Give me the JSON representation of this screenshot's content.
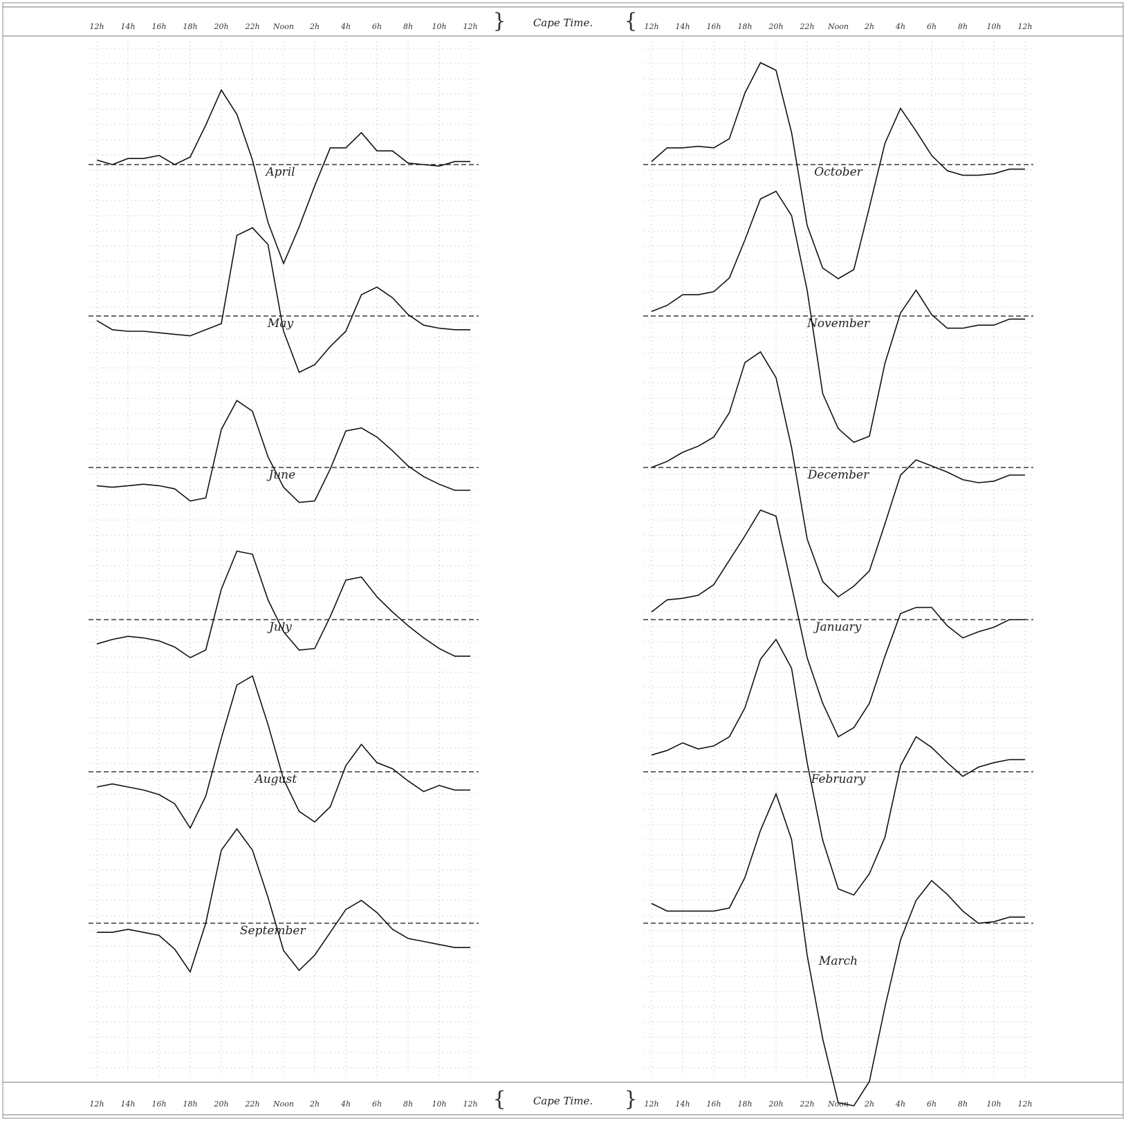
{
  "header_label": "Cape Time.",
  "footer_label": "Cape Time.",
  "chart_data": {
    "type": "line",
    "x_tick_labels": [
      "12h",
      "14h",
      "16h",
      "18h",
      "20h",
      "22h",
      "Noon",
      "2h",
      "4h",
      "6h",
      "8h",
      "10h",
      "12h"
    ],
    "x": [
      "12h",
      "13h",
      "14h",
      "15h",
      "16h",
      "17h",
      "18h",
      "19h",
      "20h",
      "21h",
      "22h",
      "23h",
      "Noon",
      "1h",
      "2h",
      "3h",
      "4h",
      "5h",
      "6h",
      "7h",
      "8h",
      "9h",
      "10h",
      "11h",
      "12h"
    ],
    "grid": true,
    "panels": [
      {
        "month": "April",
        "column": "left",
        "values": [
          0.3,
          0.0,
          0.4,
          0.4,
          0.6,
          0.0,
          0.5,
          2.6,
          4.9,
          3.3,
          0.3,
          -3.8,
          -6.5,
          -4.1,
          -1.4,
          1.1,
          1.1,
          2.1,
          0.9,
          0.9,
          0.1,
          0.0,
          -0.1,
          0.2,
          0.2
        ]
      },
      {
        "month": "May",
        "column": "left",
        "values": [
          -0.3,
          -0.9,
          -1.0,
          -1.0,
          -1.1,
          -1.2,
          -1.3,
          -0.9,
          -0.5,
          5.3,
          5.8,
          4.7,
          -1.0,
          -3.7,
          -3.2,
          -2.0,
          -1.0,
          1.4,
          1.9,
          1.2,
          0.1,
          -0.6,
          -0.8,
          -0.9,
          -0.9
        ]
      },
      {
        "month": "June",
        "column": "left",
        "values": [
          -1.2,
          -1.3,
          -1.2,
          -1.1,
          -1.2,
          -1.4,
          -2.2,
          -2.0,
          2.5,
          4.4,
          3.7,
          0.7,
          -1.3,
          -2.3,
          -2.2,
          -0.1,
          2.4,
          2.6,
          2.0,
          1.1,
          0.1,
          -0.6,
          -1.1,
          -1.5,
          -1.5
        ]
      },
      {
        "month": "July",
        "column": "left",
        "values": [
          -1.6,
          -1.3,
          -1.1,
          -1.2,
          -1.4,
          -1.8,
          -2.5,
          -2.0,
          2.0,
          4.5,
          4.3,
          1.3,
          -0.8,
          -2.0,
          -1.9,
          0.2,
          2.6,
          2.8,
          1.5,
          0.5,
          -0.4,
          -1.2,
          -1.9,
          -2.4,
          -2.4
        ]
      },
      {
        "month": "August",
        "column": "left",
        "values": [
          -1.0,
          -0.8,
          -1.0,
          -1.2,
          -1.5,
          -2.1,
          -3.7,
          -1.6,
          2.2,
          5.7,
          6.3,
          3.1,
          -0.5,
          -2.6,
          -3.3,
          -2.3,
          0.4,
          1.8,
          0.6,
          0.2,
          -0.6,
          -1.3,
          -0.9,
          -1.2,
          -1.2
        ]
      },
      {
        "month": "September",
        "column": "left",
        "values": [
          -0.6,
          -0.6,
          -0.4,
          -0.6,
          -0.8,
          -1.7,
          -3.2,
          0.0,
          4.8,
          6.2,
          4.8,
          1.7,
          -1.8,
          -3.1,
          -2.1,
          -0.6,
          0.9,
          1.5,
          0.7,
          -0.4,
          -1.0,
          -1.2,
          -1.4,
          -1.6,
          -1.6
        ]
      },
      {
        "month": "October",
        "column": "right",
        "values": [
          0.2,
          1.1,
          1.1,
          1.2,
          1.1,
          1.7,
          4.7,
          6.7,
          6.2,
          2.1,
          -4.0,
          -6.8,
          -7.5,
          -6.9,
          -2.8,
          1.4,
          3.7,
          2.2,
          0.6,
          -0.4,
          -0.7,
          -0.7,
          -0.6,
          -0.3,
          -0.3
        ]
      },
      {
        "month": "November",
        "column": "right",
        "values": [
          0.3,
          0.7,
          1.4,
          1.4,
          1.6,
          2.5,
          5.0,
          7.7,
          8.2,
          6.6,
          1.7,
          -5.1,
          -7.4,
          -8.3,
          -7.9,
          -3.1,
          0.2,
          1.7,
          0.1,
          -0.8,
          -0.8,
          -0.6,
          -0.6,
          -0.2,
          -0.2
        ]
      },
      {
        "month": "December",
        "column": "right",
        "values": [
          0.0,
          0.4,
          1.0,
          1.4,
          2.0,
          3.6,
          6.9,
          7.6,
          5.9,
          1.3,
          -4.7,
          -7.5,
          -8.5,
          -7.8,
          -6.8,
          -3.7,
          -0.5,
          0.5,
          0.1,
          -0.3,
          -0.8,
          -1.0,
          -0.9,
          -0.5,
          -0.5
        ]
      },
      {
        "month": "January",
        "column": "right",
        "values": [
          0.5,
          1.3,
          1.4,
          1.6,
          2.3,
          3.9,
          5.5,
          7.2,
          6.8,
          2.2,
          -2.5,
          -5.5,
          -7.7,
          -7.1,
          -5.5,
          -2.4,
          0.4,
          0.8,
          0.8,
          -0.4,
          -1.2,
          -0.8,
          -0.5,
          0.0,
          0.0
        ]
      },
      {
        "month": "February",
        "column": "right",
        "values": [
          1.1,
          1.4,
          1.9,
          1.5,
          1.7,
          2.3,
          4.2,
          7.4,
          8.7,
          6.8,
          0.6,
          -4.5,
          -7.7,
          -8.1,
          -6.7,
          -4.3,
          0.4,
          2.3,
          1.6,
          0.6,
          -0.3,
          0.3,
          0.6,
          0.8,
          0.8
        ]
      },
      {
        "month": "March",
        "column": "right",
        "values": [
          1.3,
          0.8,
          0.8,
          0.8,
          0.8,
          1.0,
          3.0,
          6.1,
          8.5,
          5.5,
          -2.1,
          -7.6,
          -11.8,
          -12.0,
          -10.4,
          -5.5,
          -1.1,
          1.5,
          2.8,
          1.9,
          0.8,
          0.0,
          0.1,
          0.4,
          0.4
        ]
      }
    ],
    "panel_label_offset": {
      "April": [
        -0.2,
        0.0
      ],
      "May": [
        -0.2,
        0.0
      ],
      "June": [
        -0.1,
        0.0
      ],
      "July": [
        -0.2,
        0.0
      ],
      "August": [
        -0.5,
        0.0
      ],
      "September": [
        -0.7,
        0.0
      ],
      "October": [
        0.0,
        0.0
      ],
      "November": [
        0.0,
        0.0
      ],
      "December": [
        0.0,
        0.0
      ],
      "January": [
        0.0,
        0.0
      ],
      "February": [
        0.0,
        0.0
      ],
      "March": [
        0.0,
        -2.0
      ]
    }
  }
}
